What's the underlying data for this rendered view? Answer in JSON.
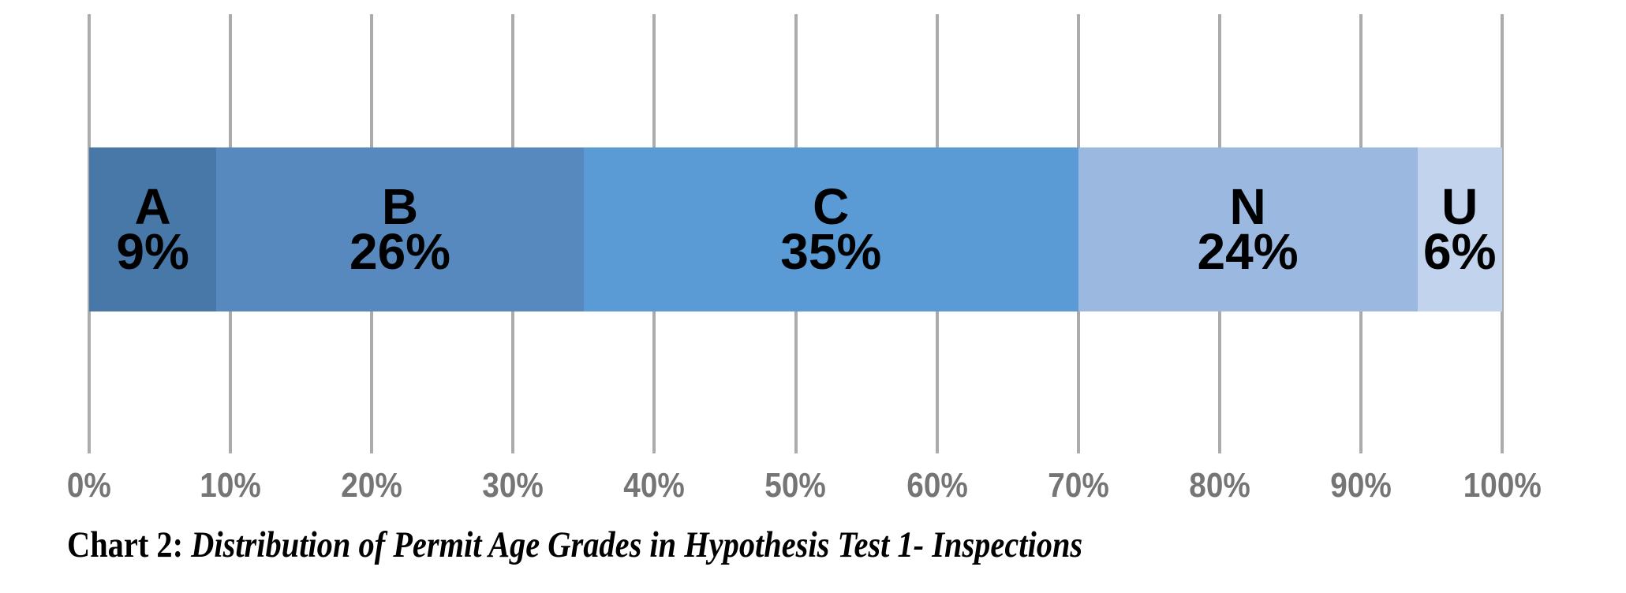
{
  "chart_data": {
    "type": "bar",
    "subtype": "horizontal-stacked-percentage",
    "title": "",
    "categories": [
      "A",
      "B",
      "C",
      "N",
      "U"
    ],
    "values": [
      9,
      26,
      35,
      24,
      6
    ],
    "segment_labels": [
      {
        "letter": "A",
        "percent": "9%"
      },
      {
        "letter": "B",
        "percent": "26%"
      },
      {
        "letter": "C",
        "percent": "35%"
      },
      {
        "letter": "N",
        "percent": "24%"
      },
      {
        "letter": "U",
        "percent": "6%"
      }
    ],
    "x_tick_labels": [
      "0%",
      "10%",
      "20%",
      "30%",
      "40%",
      "50%",
      "60%",
      "70%",
      "80%",
      "90%",
      "100%"
    ],
    "xlim": [
      0,
      100
    ],
    "grid": "vertical",
    "legend": "none",
    "caption": {
      "prefix": "Chart 2: ",
      "text": "Distribution of Permit Age Grades in Hypothesis Test 1- Inspections"
    },
    "colors": {
      "segments": [
        "#4878A8",
        "#5789BE",
        "#5B9BD5",
        "#9BB8E0",
        "#C1D3ED"
      ],
      "gridline": "#ABABAB",
      "tick_label": "#757575",
      "segment_label": "#000000",
      "background": "#FFFFFF"
    }
  }
}
